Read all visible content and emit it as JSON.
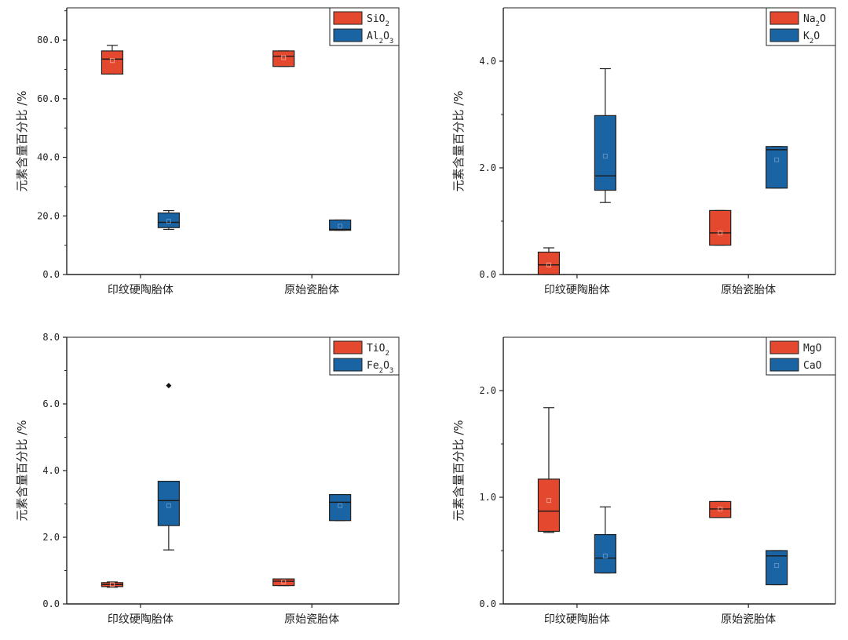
{
  "colors": {
    "series1": "#e4492f",
    "series2": "#1a64a4",
    "axis": "#222222",
    "median": "#1a1a1a"
  },
  "chart_data": [
    {
      "type": "box",
      "ylabel": "元素含量百分比 /%",
      "categories": [
        "印纹硬陶胎体",
        "原始瓷胎体"
      ],
      "ylim": [
        0,
        91
      ],
      "yticks": [
        "0.0",
        "20.0",
        "40.0",
        "60.0",
        "80.0"
      ],
      "ytick_values": [
        0,
        20,
        40,
        60,
        80
      ],
      "legend_position": "top-right",
      "series": [
        {
          "name": "SiO2",
          "legend_base": "SiO",
          "legend_sub": "2",
          "legend_tail": "",
          "legend_sub2": "",
          "boxes": [
            {
              "whisker_low": 68.4,
              "q1": 68.4,
              "median": 73.5,
              "mean": 73.0,
              "q3": 76.3,
              "whisker_high": 78.2,
              "outliers": []
            },
            {
              "whisker_low": 71.0,
              "q1": 71.0,
              "median": 74.5,
              "mean": 74.0,
              "q3": 76.3,
              "whisker_high": 76.3,
              "outliers": []
            }
          ]
        },
        {
          "name": "Al2O3",
          "legend_base": "Al",
          "legend_sub": "2",
          "legend_tail": "O",
          "legend_sub2": "3",
          "boxes": [
            {
              "whisker_low": 15.4,
              "q1": 16.0,
              "median": 17.8,
              "mean": 18.2,
              "q3": 21.0,
              "whisker_high": 21.8,
              "outliers": []
            },
            {
              "whisker_low": 15.1,
              "q1": 15.1,
              "median": 15.4,
              "mean": 16.5,
              "q3": 18.6,
              "whisker_high": 18.6,
              "outliers": []
            }
          ]
        }
      ]
    },
    {
      "type": "box",
      "ylabel": "元素含量百分比 /%",
      "categories": [
        "印纹硬陶胎体",
        "原始瓷胎体"
      ],
      "ylim": [
        0,
        5.0
      ],
      "yticks": [
        "0.0",
        "2.0",
        "4.0"
      ],
      "ytick_values": [
        0,
        2,
        4
      ],
      "legend_position": "top-right",
      "series": [
        {
          "name": "Na2O",
          "legend_base": "Na",
          "legend_sub": "2",
          "legend_tail": "O",
          "legend_sub2": "",
          "boxes": [
            {
              "whisker_low": 0.0,
              "q1": 0.0,
              "median": 0.18,
              "mean": 0.18,
              "q3": 0.42,
              "whisker_high": 0.5,
              "outliers": []
            },
            {
              "whisker_low": 0.55,
              "q1": 0.55,
              "median": 0.78,
              "mean": 0.78,
              "q3": 1.2,
              "whisker_high": 1.2,
              "outliers": []
            }
          ]
        },
        {
          "name": "K2O",
          "legend_base": "K",
          "legend_sub": "2",
          "legend_tail": "O",
          "legend_sub2": "",
          "boxes": [
            {
              "whisker_low": 1.35,
              "q1": 1.58,
              "median": 1.85,
              "mean": 2.22,
              "q3": 2.98,
              "whisker_high": 3.86,
              "outliers": []
            },
            {
              "whisker_low": 1.62,
              "q1": 1.62,
              "median": 2.34,
              "mean": 2.15,
              "q3": 2.4,
              "whisker_high": 2.4,
              "outliers": []
            }
          ]
        }
      ]
    },
    {
      "type": "box",
      "ylabel": "元素含量百分比 /%",
      "categories": [
        "印纹硬陶胎体",
        "原始瓷胎体"
      ],
      "ylim": [
        0,
        8.0
      ],
      "yticks": [
        "0.0",
        "2.0",
        "4.0",
        "6.0",
        "8.0"
      ],
      "ytick_values": [
        0,
        2,
        4,
        6,
        8
      ],
      "legend_position": "top-right",
      "series": [
        {
          "name": "TiO2",
          "legend_base": "TiO",
          "legend_sub": "2",
          "legend_tail": "",
          "legend_sub2": "",
          "boxes": [
            {
              "whisker_low": 0.5,
              "q1": 0.52,
              "median": 0.58,
              "mean": 0.58,
              "q3": 0.64,
              "whisker_high": 0.66,
              "outliers": []
            },
            {
              "whisker_low": 0.55,
              "q1": 0.55,
              "median": 0.68,
              "mean": 0.66,
              "q3": 0.75,
              "whisker_high": 0.75,
              "outliers": []
            }
          ]
        },
        {
          "name": "Fe2O3",
          "legend_base": "Fe",
          "legend_sub": "2",
          "legend_tail": "O",
          "legend_sub2": "3",
          "boxes": [
            {
              "whisker_low": 1.62,
              "q1": 2.35,
              "median": 3.1,
              "mean": 2.95,
              "q3": 3.68,
              "whisker_high": 3.68,
              "outliers": [
                6.55
              ]
            },
            {
              "whisker_low": 2.5,
              "q1": 2.5,
              "median": 3.05,
              "mean": 2.95,
              "q3": 3.28,
              "whisker_high": 3.28,
              "outliers": []
            }
          ]
        }
      ]
    },
    {
      "type": "box",
      "ylabel": "元素含量百分比 /%",
      "categories": [
        "印纹硬陶胎体",
        "原始瓷胎体"
      ],
      "ylim": [
        0,
        2.5
      ],
      "yticks": [
        "0.0",
        "1.0",
        "2.0"
      ],
      "ytick_values": [
        0,
        1,
        2
      ],
      "legend_position": "top-right",
      "series": [
        {
          "name": "MgO",
          "legend_base": "MgO",
          "legend_sub": "",
          "legend_tail": "",
          "legend_sub2": "",
          "boxes": [
            {
              "whisker_low": 0.67,
              "q1": 0.68,
              "median": 0.87,
              "mean": 0.97,
              "q3": 1.17,
              "whisker_high": 1.84,
              "outliers": []
            },
            {
              "whisker_low": 0.81,
              "q1": 0.81,
              "median": 0.89,
              "mean": 0.89,
              "q3": 0.96,
              "whisker_high": 0.96,
              "outliers": []
            }
          ]
        },
        {
          "name": "CaO",
          "legend_base": "CaO",
          "legend_sub": "",
          "legend_tail": "",
          "legend_sub2": "",
          "boxes": [
            {
              "whisker_low": 0.29,
              "q1": 0.29,
              "median": 0.43,
              "mean": 0.45,
              "q3": 0.65,
              "whisker_high": 0.91,
              "outliers": []
            },
            {
              "whisker_low": 0.18,
              "q1": 0.18,
              "median": 0.45,
              "mean": 0.36,
              "q3": 0.5,
              "whisker_high": 0.5,
              "outliers": []
            }
          ]
        }
      ]
    }
  ]
}
